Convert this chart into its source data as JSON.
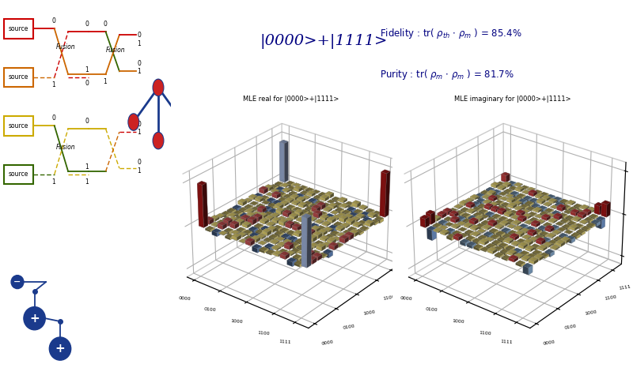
{
  "title_state": "|0000>+|1111>",
  "fidelity_text": "Fidelity : tr( ρ$_{th}$ · ρ$_m$ ) = 85.4%",
  "purity_text": "Purity : tr( ρ$_m$ · ρ$_m$ ) = 81.7%",
  "real_title": "MLE real for |0000>+|1111>",
  "imag_title": "MLE imaginary for |0000>+|1111>",
  "bg_color": "#ffffff",
  "source_colors": [
    "#cc0000",
    "#cc6600",
    "#ccaa00",
    "#336600"
  ],
  "basis_labels_x": [
    "0000",
    "0100",
    "1000",
    "1100",
    "1111"
  ],
  "basis_labels_y": [
    "0000",
    "0100",
    "1000",
    "1100",
    "1111"
  ],
  "bar_color_tall_pos": "#8B0000",
  "bar_color_tall_neg": "#6699bb",
  "bar_color_small": "#c8b860",
  "bar_color_small_neg": "#8B0000",
  "annotation_color": "#000080",
  "tick_labels": [
    "0000",
    "0100",
    "1000",
    "1100",
    "1111"
  ],
  "tick_positions": [
    0,
    4,
    8,
    12,
    15
  ]
}
